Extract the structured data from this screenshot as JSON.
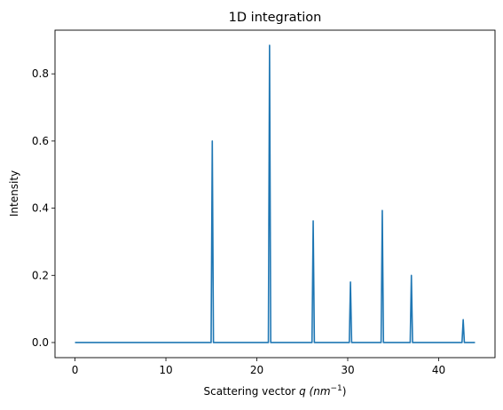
{
  "chart_data": {
    "type": "line",
    "title": "1D integration",
    "xlabel": "Scattering vector",
    "xlabel_var": "q",
    "xlabel_unit_base": "(nm",
    "xlabel_unit_exp": "−1",
    "xlabel_unit_close": ")",
    "ylabel": "Intensity",
    "xlim": [
      -2.2,
      46.2
    ],
    "ylim": [
      -0.045,
      0.93
    ],
    "xticks": [
      0,
      10,
      20,
      30,
      40
    ],
    "xtick_labels": [
      "0",
      "10",
      "20",
      "30",
      "40"
    ],
    "yticks": [
      0.0,
      0.2,
      0.4,
      0.6,
      0.8
    ],
    "ytick_labels": [
      "0.0",
      "0.2",
      "0.4",
      "0.6",
      "0.8"
    ],
    "x_range": [
      0,
      44
    ],
    "baseline": 0.0,
    "series": [
      {
        "color": "#1f77b4",
        "peaks": [
          {
            "x": 15.1,
            "y": 0.6
          },
          {
            "x": 21.4,
            "y": 0.885
          },
          {
            "x": 26.2,
            "y": 0.362
          },
          {
            "x": 30.3,
            "y": 0.18
          },
          {
            "x": 33.8,
            "y": 0.393
          },
          {
            "x": 37.0,
            "y": 0.2
          },
          {
            "x": 42.7,
            "y": 0.068
          }
        ]
      }
    ],
    "grid": false,
    "legend": "none"
  }
}
